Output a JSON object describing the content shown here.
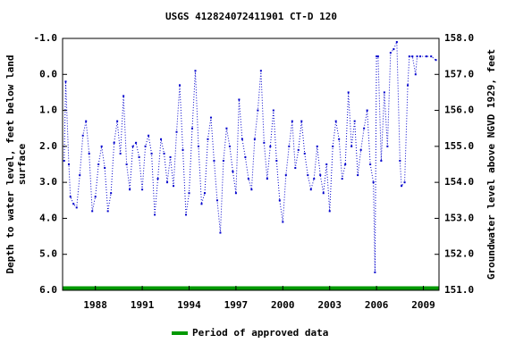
{
  "chart_data": {
    "type": "line",
    "title": "USGS 412824072411901  CT-D    120",
    "y_label": [
      "Depth to water level, feet below land",
      "surface"
    ],
    "y2_label": "Groundwater level above NGVD 1929, feet",
    "xlim": [
      1985.9,
      2010.0
    ],
    "xticks": [
      1988,
      1991,
      1994,
      1997,
      2000,
      2003,
      2006,
      2009
    ],
    "ylim": [
      -1,
      6
    ],
    "y_inverted": true,
    "yticks": [
      {
        "value": -1,
        "label": "-1.0"
      },
      {
        "value": 0,
        "label": "0.0"
      },
      {
        "value": 1,
        "label": "1.0"
      },
      {
        "value": 2,
        "label": "2.0"
      },
      {
        "value": 3,
        "label": "3.0"
      },
      {
        "value": 4,
        "label": "4.0"
      },
      {
        "value": 5,
        "label": "5.0"
      },
      {
        "value": 6,
        "label": "6.0"
      }
    ],
    "y2lim": [
      151,
      158
    ],
    "y2ticks": [
      {
        "value": 151,
        "label": "151.0"
      },
      {
        "value": 152,
        "label": "152.0"
      },
      {
        "value": 153,
        "label": "153.0"
      },
      {
        "value": 154,
        "label": "154.0"
      },
      {
        "value": 155,
        "label": "155.0"
      },
      {
        "value": 156,
        "label": "156.0"
      },
      {
        "value": 157,
        "label": "157.0"
      },
      {
        "value": 158,
        "label": "158.0"
      }
    ],
    "grid": false,
    "x": [
      1986.0,
      1986.1,
      1986.3,
      1986.4,
      1986.6,
      1986.8,
      1987.0,
      1987.2,
      1987.4,
      1987.6,
      1987.8,
      1988.0,
      1988.2,
      1988.4,
      1988.6,
      1988.8,
      1989.0,
      1989.2,
      1989.4,
      1989.6,
      1989.8,
      1990.0,
      1990.2,
      1990.4,
      1990.6,
      1990.8,
      1991.0,
      1991.2,
      1991.4,
      1991.6,
      1991.8,
      1992.0,
      1992.2,
      1992.4,
      1992.6,
      1992.8,
      1993.0,
      1993.2,
      1993.4,
      1993.6,
      1993.8,
      1994.0,
      1994.2,
      1994.4,
      1994.6,
      1994.8,
      1995.0,
      1995.2,
      1995.4,
      1995.6,
      1995.8,
      1996.0,
      1996.2,
      1996.4,
      1996.6,
      1996.8,
      1997.0,
      1997.2,
      1997.4,
      1997.6,
      1997.8,
      1998.0,
      1998.2,
      1998.4,
      1998.6,
      1998.8,
      1999.0,
      1999.2,
      1999.4,
      1999.6,
      1999.8,
      2000.0,
      2000.2,
      2000.4,
      2000.6,
      2000.8,
      2001.0,
      2001.2,
      2001.4,
      2001.6,
      2001.8,
      2002.0,
      2002.2,
      2002.4,
      2002.6,
      2002.8,
      2003.0,
      2003.2,
      2003.4,
      2003.6,
      2003.8,
      2004.0,
      2004.2,
      2004.4,
      2004.6,
      2004.8,
      2005.0,
      2005.2,
      2005.4,
      2005.6,
      2005.8,
      2005.9,
      2006.0,
      2006.1,
      2006.3,
      2006.5,
      2006.7,
      2006.9,
      2007.1,
      2007.3,
      2007.5,
      2007.6,
      2007.8,
      2008.0,
      2008.1,
      2008.3,
      2008.5,
      2008.6,
      2008.8,
      2009.2,
      2009.5,
      2009.8
    ],
    "series": [
      {
        "name": "Depth to water level",
        "color": "#0000cc",
        "values": [
          2.4,
          0.2,
          2.5,
          3.4,
          3.6,
          3.7,
          2.8,
          1.7,
          1.3,
          2.2,
          3.8,
          3.4,
          2.5,
          2.0,
          2.6,
          3.8,
          3.3,
          1.9,
          1.3,
          2.2,
          0.6,
          2.5,
          3.2,
          2.0,
          1.9,
          2.3,
          3.2,
          2.0,
          1.7,
          2.2,
          3.9,
          2.9,
          1.8,
          2.2,
          3.0,
          2.3,
          3.1,
          1.6,
          0.3,
          2.1,
          3.9,
          3.3,
          1.5,
          -0.1,
          2.0,
          3.6,
          3.3,
          1.8,
          1.2,
          2.4,
          3.5,
          4.4,
          2.4,
          1.5,
          2.0,
          2.7,
          3.3,
          0.7,
          1.8,
          2.3,
          2.9,
          3.2,
          1.8,
          1.0,
          -0.1,
          1.9,
          2.9,
          2.0,
          1.0,
          2.4,
          3.5,
          4.1,
          2.8,
          2.0,
          1.3,
          2.6,
          2.1,
          1.3,
          2.2,
          2.8,
          3.2,
          2.9,
          2.0,
          2.8,
          3.3,
          2.5,
          3.8,
          2.0,
          1.3,
          1.8,
          2.9,
          2.5,
          0.5,
          2.0,
          1.3,
          2.8,
          2.1,
          1.5,
          1.0,
          2.5,
          3.0,
          5.5,
          -0.5,
          -0.5,
          2.4,
          0.5,
          2.0,
          -0.6,
          -0.7,
          -0.9,
          2.4,
          3.1,
          3.0,
          0.3,
          -0.5,
          -0.5,
          0.0,
          -0.5,
          -0.5,
          -0.5,
          -0.5,
          -0.4
        ]
      }
    ],
    "periods": [
      {
        "name": "Period of approved data",
        "color": "#009900",
        "start": 1985.9,
        "end": 2010.0
      }
    ]
  }
}
